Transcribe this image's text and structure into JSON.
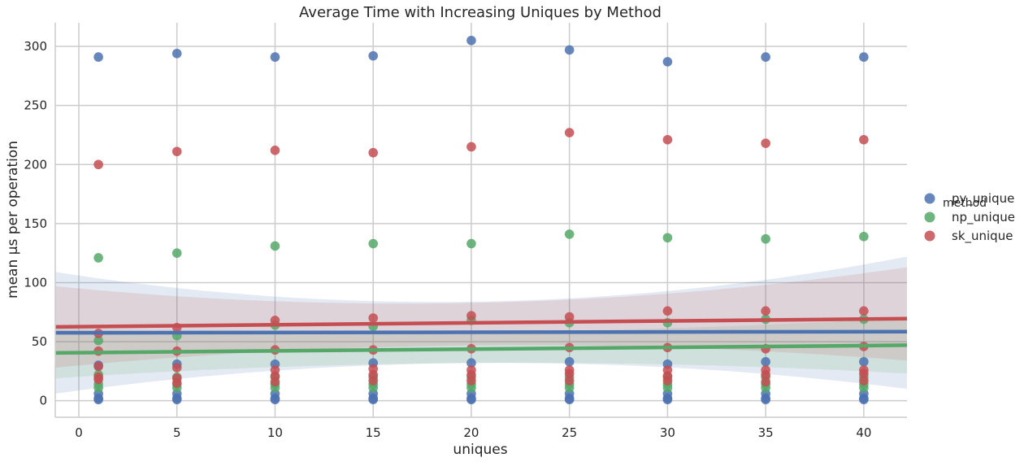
{
  "chart_data": {
    "type": "scatter",
    "title": "Average Time with Increasing Uniques by Method",
    "xlabel": "uniques",
    "ylabel": "mean µs per operation",
    "xlim": [
      -1.2,
      42.2
    ],
    "ylim": [
      -14,
      320
    ],
    "xticks": [
      0,
      5,
      10,
      15,
      20,
      25,
      30,
      35,
      40
    ],
    "yticks": [
      0,
      50,
      100,
      150,
      200,
      250,
      300
    ],
    "grid": true,
    "legend": {
      "title": "method",
      "placement": "right",
      "entries": [
        "py_unique",
        "np_unique",
        "sk_unique"
      ]
    },
    "series": [
      {
        "name": "py_unique",
        "color": "#4c72b0",
        "points": [
          [
            1,
            291
          ],
          [
            1,
            30
          ],
          [
            1,
            6
          ],
          [
            1,
            2
          ],
          [
            1,
            1
          ],
          [
            5,
            294
          ],
          [
            5,
            31
          ],
          [
            5,
            6
          ],
          [
            5,
            2
          ],
          [
            5,
            1
          ],
          [
            10,
            291
          ],
          [
            10,
            31
          ],
          [
            10,
            6
          ],
          [
            10,
            2
          ],
          [
            10,
            1
          ],
          [
            15,
            292
          ],
          [
            15,
            32
          ],
          [
            15,
            6
          ],
          [
            15,
            2
          ],
          [
            15,
            1
          ],
          [
            20,
            305
          ],
          [
            20,
            32
          ],
          [
            20,
            6
          ],
          [
            20,
            2
          ],
          [
            20,
            1
          ],
          [
            25,
            297
          ],
          [
            25,
            33
          ],
          [
            25,
            6
          ],
          [
            25,
            2
          ],
          [
            25,
            1
          ],
          [
            30,
            287
          ],
          [
            30,
            31
          ],
          [
            30,
            6
          ],
          [
            30,
            2
          ],
          [
            30,
            1
          ],
          [
            35,
            291
          ],
          [
            35,
            33
          ],
          [
            35,
            6
          ],
          [
            35,
            2
          ],
          [
            35,
            1
          ],
          [
            40,
            291
          ],
          [
            40,
            33
          ],
          [
            40,
            6
          ],
          [
            40,
            2
          ],
          [
            40,
            1
          ]
        ],
        "fit": {
          "y_start": 57.5,
          "y_end": 58.5
        },
        "ci": {
          "lower": [
            6,
            32,
            10
          ],
          "upper": [
            109,
            84,
            122
          ]
        }
      },
      {
        "name": "np_unique",
        "color": "#55a868",
        "points": [
          [
            1,
            121
          ],
          [
            1,
            51
          ],
          [
            1,
            22
          ],
          [
            1,
            14
          ],
          [
            1,
            11
          ],
          [
            5,
            125
          ],
          [
            5,
            55
          ],
          [
            5,
            20
          ],
          [
            5,
            14
          ],
          [
            5,
            11
          ],
          [
            10,
            131
          ],
          [
            10,
            64
          ],
          [
            10,
            20
          ],
          [
            10,
            14
          ],
          [
            10,
            11
          ],
          [
            15,
            133
          ],
          [
            15,
            63
          ],
          [
            15,
            20
          ],
          [
            15,
            14
          ],
          [
            15,
            11
          ],
          [
            20,
            133
          ],
          [
            20,
            68
          ],
          [
            20,
            20
          ],
          [
            20,
            14
          ],
          [
            20,
            11
          ],
          [
            25,
            141
          ],
          [
            25,
            66
          ],
          [
            25,
            20
          ],
          [
            25,
            14
          ],
          [
            25,
            11
          ],
          [
            30,
            138
          ],
          [
            30,
            66
          ],
          [
            30,
            20
          ],
          [
            30,
            14
          ],
          [
            30,
            11
          ],
          [
            35,
            137
          ],
          [
            35,
            69
          ],
          [
            35,
            20
          ],
          [
            35,
            14
          ],
          [
            35,
            11
          ],
          [
            40,
            139
          ],
          [
            40,
            69
          ],
          [
            40,
            20
          ],
          [
            40,
            14
          ],
          [
            40,
            11
          ]
        ],
        "fit": {
          "y_start": 40.5,
          "y_end": 47
        },
        "ci": {
          "lower": [
            19,
            32,
            23
          ],
          "upper": [
            61,
            58,
            70
          ]
        }
      },
      {
        "name": "sk_unique",
        "color": "#c44e52",
        "points": [
          [
            1,
            200
          ],
          [
            1,
            57
          ],
          [
            1,
            42
          ],
          [
            1,
            29
          ],
          [
            1,
            20
          ],
          [
            1,
            18
          ],
          [
            5,
            211
          ],
          [
            5,
            62
          ],
          [
            5,
            42
          ],
          [
            5,
            28
          ],
          [
            5,
            19
          ],
          [
            5,
            15
          ],
          [
            10,
            212
          ],
          [
            10,
            68
          ],
          [
            10,
            43
          ],
          [
            10,
            26
          ],
          [
            10,
            21
          ],
          [
            10,
            16
          ],
          [
            15,
            210
          ],
          [
            15,
            70
          ],
          [
            15,
            43
          ],
          [
            15,
            27
          ],
          [
            15,
            22
          ],
          [
            15,
            17
          ],
          [
            20,
            215
          ],
          [
            20,
            72
          ],
          [
            20,
            44
          ],
          [
            20,
            26
          ],
          [
            20,
            22
          ],
          [
            20,
            17
          ],
          [
            25,
            227
          ],
          [
            25,
            71
          ],
          [
            25,
            45
          ],
          [
            25,
            26
          ],
          [
            25,
            23
          ],
          [
            25,
            17
          ],
          [
            30,
            221
          ],
          [
            30,
            76
          ],
          [
            30,
            45
          ],
          [
            30,
            26
          ],
          [
            30,
            21
          ],
          [
            30,
            17
          ],
          [
            35,
            218
          ],
          [
            35,
            76
          ],
          [
            35,
            44
          ],
          [
            35,
            26
          ],
          [
            35,
            22
          ],
          [
            35,
            16
          ],
          [
            40,
            221
          ],
          [
            40,
            76
          ],
          [
            40,
            46
          ],
          [
            40,
            26
          ],
          [
            40,
            23
          ],
          [
            40,
            17
          ]
        ],
        "fit": {
          "y_start": 62.5,
          "y_end": 69.5
        },
        "ci": {
          "lower": [
            28,
            47,
            34
          ],
          "upper": [
            97,
            83,
            113
          ]
        }
      }
    ]
  }
}
